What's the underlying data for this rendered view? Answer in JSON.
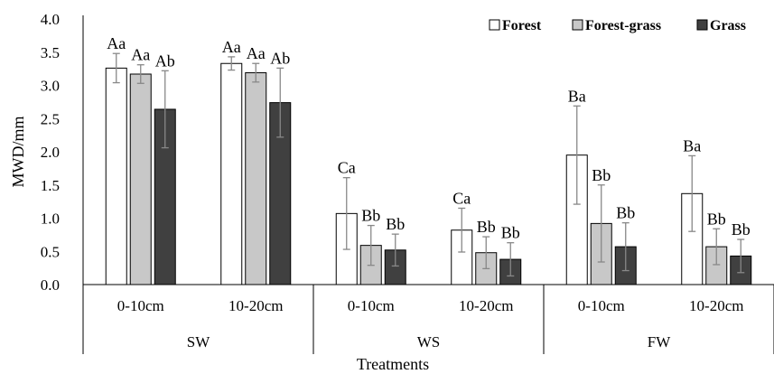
{
  "chart_data": {
    "type": "bar",
    "xlabel": "Treatments",
    "ylabel": "MWD/mm",
    "ylim": [
      0,
      4
    ],
    "yticks": [
      "0.0",
      "0.5",
      "1.0",
      "1.5",
      "2.0",
      "2.5",
      "3.0",
      "3.5",
      "4.0"
    ],
    "legend_position": "top-right",
    "groups": [
      {
        "name": "SW",
        "categories": [
          "0-10cm",
          "10-20cm"
        ]
      },
      {
        "name": "WS",
        "categories": [
          "0-10cm",
          "10-20cm"
        ]
      },
      {
        "name": "FW",
        "categories": [
          "0-10cm",
          "10-20cm"
        ]
      }
    ],
    "categories": [
      "0-10cm",
      "10-20cm",
      "0-10cm",
      "10-20cm",
      "0-10cm",
      "10-20cm"
    ],
    "series": [
      {
        "name": "Forest",
        "color": "#ffffff",
        "values": [
          3.26,
          3.33,
          1.07,
          0.82,
          1.95,
          1.37
        ],
        "errors": [
          0.22,
          0.1,
          0.54,
          0.33,
          0.74,
          0.57
        ],
        "labels": [
          "Aa",
          "Aa",
          "Ca",
          "Ca",
          "Ba",
          "Ba"
        ]
      },
      {
        "name": "Forest-grass",
        "color": "#c8c8c8",
        "values": [
          3.17,
          3.19,
          0.59,
          0.48,
          0.92,
          0.57
        ],
        "errors": [
          0.14,
          0.14,
          0.3,
          0.24,
          0.58,
          0.27
        ],
        "labels": [
          "Aa",
          "Aa",
          "Bb",
          "Bb",
          "Bb",
          "Bb"
        ]
      },
      {
        "name": "Grass",
        "color": "#404040",
        "values": [
          2.64,
          2.74,
          0.52,
          0.38,
          0.57,
          0.43
        ],
        "errors": [
          0.58,
          0.52,
          0.24,
          0.25,
          0.36,
          0.25
        ],
        "labels": [
          "Ab",
          "Ab",
          "Bb",
          "Bb",
          "Bb",
          "Bb"
        ]
      }
    ]
  }
}
